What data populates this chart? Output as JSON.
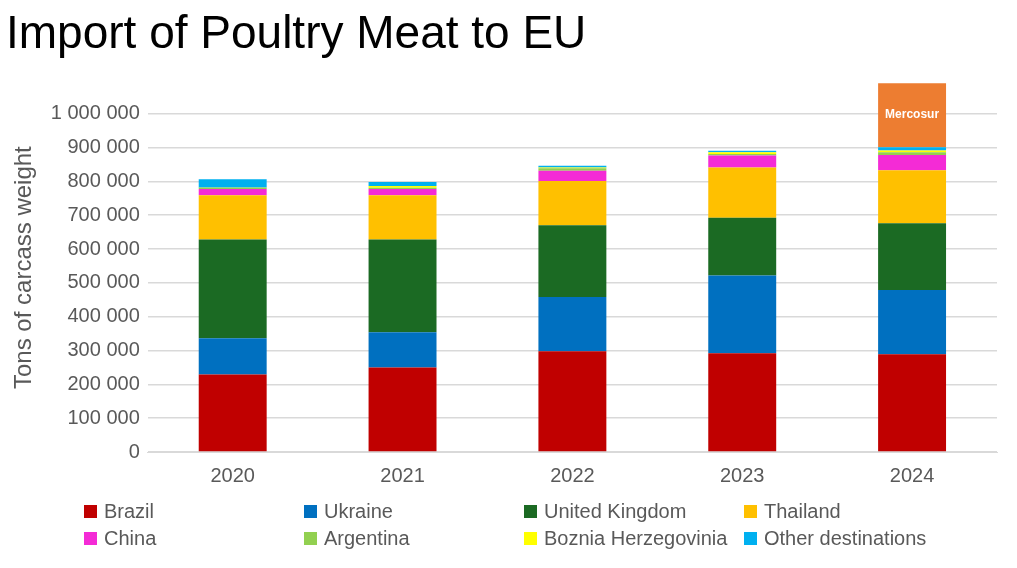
{
  "chart_data": {
    "type": "bar",
    "title": "Import of Poultry Meat to EU",
    "ylabel": "Tons of carcass weight",
    "categories": [
      "2020",
      "2021",
      "2022",
      "2023",
      "2024"
    ],
    "stacked": true,
    "grid": "y",
    "legend": "bottom",
    "ylim": [
      0,
      1090000
    ],
    "yticks": [
      {
        "value": 0,
        "label": "0"
      },
      {
        "value": 100000,
        "label": "100 000"
      },
      {
        "value": 200000,
        "label": "200 000"
      },
      {
        "value": 300000,
        "label": "300 000"
      },
      {
        "value": 400000,
        "label": "400 000"
      },
      {
        "value": 500000,
        "label": "500 000"
      },
      {
        "value": 600000,
        "label": "600 000"
      },
      {
        "value": 700000,
        "label": "700 000"
      },
      {
        "value": 800000,
        "label": "800 000"
      },
      {
        "value": 900000,
        "label": "900 000"
      },
      {
        "value": 1000000,
        "label": "1 000 000"
      }
    ],
    "series": [
      {
        "name": "Brazil",
        "color": "#c00000",
        "values": [
          229000,
          250000,
          298000,
          292000,
          289000
        ]
      },
      {
        "name": "Ukraine",
        "color": "#0070c0",
        "values": [
          107000,
          104000,
          160000,
          230000,
          190000
        ]
      },
      {
        "name": "United Kingdom",
        "color": "#1b6a23",
        "values": [
          292000,
          274000,
          212000,
          170000,
          197000
        ]
      },
      {
        "name": "Thailand",
        "color": "#ffc000",
        "values": [
          131000,
          131000,
          131000,
          149000,
          157000
        ]
      },
      {
        "name": "China",
        "color": "#f42bd6",
        "values": [
          18000,
          18000,
          30000,
          35000,
          45000
        ]
      },
      {
        "name": "Argentina",
        "color": "#92d050",
        "values": [
          5000,
          4000,
          8000,
          5000,
          8000
        ]
      },
      {
        "name": "Boznia Herzegovinia",
        "color": "#ffff00",
        "values": [
          0,
          5000,
          2000,
          5000,
          5000
        ]
      },
      {
        "name": "Other destinations",
        "color": "#00b0f0",
        "values": [
          24000,
          12000,
          5000,
          4000,
          10000
        ]
      },
      {
        "color": "#ed7d31",
        "values": [
          null,
          null,
          null,
          null,
          190000
        ]
      }
    ],
    "annotations": [
      "Mercosur"
    ]
  }
}
